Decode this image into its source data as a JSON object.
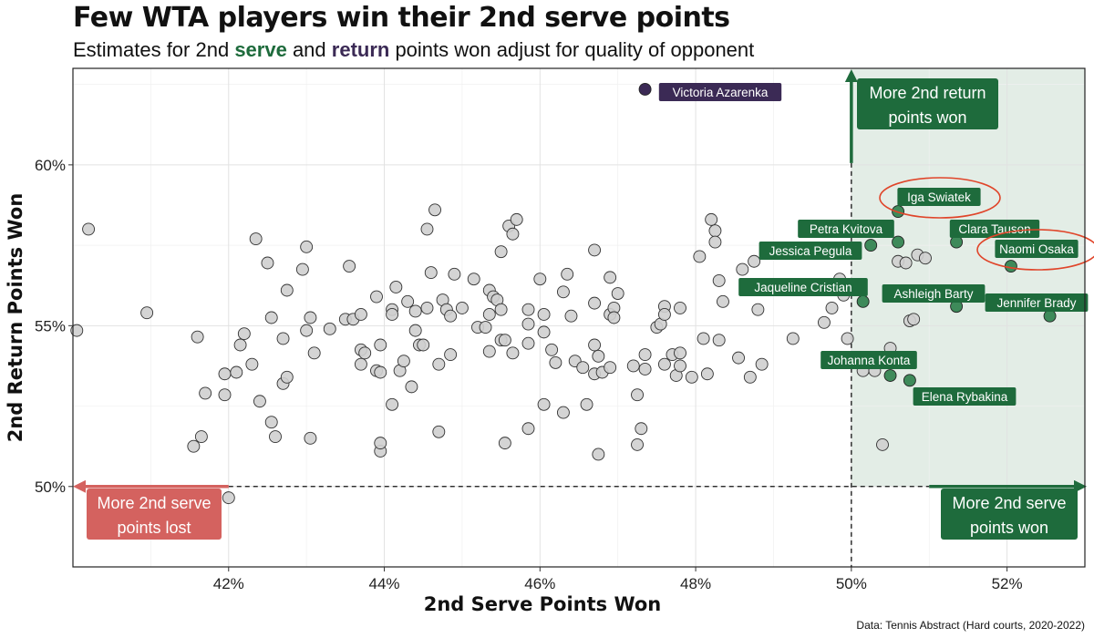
{
  "title": "Few WTA players win their 2nd serve points",
  "subtitle": {
    "pre": "Estimates for 2nd ",
    "serve": "serve",
    "mid": " and ",
    "return": "return",
    "post": " points won adjust for quality of opponent"
  },
  "caption": "Data: Tennis Abstract (Hard courts, 2020-2022)",
  "colors": {
    "point_fill": "#cfcfcf",
    "highlight_fill": "#3e8a5a",
    "highlight_label": "#1e6b3c",
    "azarenka": "#3b2a55",
    "lost": "#d4625f",
    "shade": "#e3ede6",
    "circle": "#e0452a"
  },
  "chart_data": {
    "type": "scatter",
    "xlabel": "2nd Serve Points Won",
    "ylabel": "2nd Return Points Won",
    "xlim": [
      40,
      53
    ],
    "ylim": [
      47.5,
      63
    ],
    "xticks": [
      42,
      44,
      46,
      48,
      50,
      52
    ],
    "yticks": [
      50,
      55,
      60
    ],
    "xtick_labels": [
      "42%",
      "44%",
      "46%",
      "48%",
      "50%",
      "52%"
    ],
    "ytick_labels": [
      "50%",
      "55%",
      "60%"
    ],
    "grid": true,
    "reference_lines": {
      "x": 50,
      "y": 50
    },
    "annotations": [
      {
        "text_lines": [
          "More 2nd return",
          "points won"
        ],
        "color": "green"
      },
      {
        "text_lines": [
          "More 2nd serve",
          "points lost"
        ],
        "color": "red"
      },
      {
        "text_lines": [
          "More 2nd serve",
          "points won"
        ],
        "color": "green"
      }
    ],
    "labeled_points": [
      {
        "name": "Victoria Azarenka",
        "x": 47.35,
        "y": 62.35,
        "group": "azarenka"
      },
      {
        "name": "Iga Swiatek",
        "x": 50.6,
        "y": 58.55,
        "group": "top",
        "circled": true
      },
      {
        "name": "Petra Kvitova",
        "x": 50.6,
        "y": 57.6,
        "group": "top"
      },
      {
        "name": "Jessica Pegula",
        "x": 50.25,
        "y": 57.5,
        "group": "top"
      },
      {
        "name": "Clara Tauson",
        "x": 51.35,
        "y": 57.6,
        "group": "top"
      },
      {
        "name": "Naomi Osaka",
        "x": 52.05,
        "y": 56.85,
        "group": "top",
        "circled": true
      },
      {
        "name": "Jaqueline Cristian",
        "x": 50.15,
        "y": 55.75,
        "group": "top"
      },
      {
        "name": "Ashleigh Barty",
        "x": 51.35,
        "y": 55.6,
        "group": "top"
      },
      {
        "name": "Jennifer Brady",
        "x": 52.55,
        "y": 55.3,
        "group": "top"
      },
      {
        "name": "Johanna Konta",
        "x": 50.5,
        "y": 53.45,
        "group": "top"
      },
      {
        "name": "Elena Rybakina",
        "x": 50.75,
        "y": 53.3,
        "group": "top"
      }
    ],
    "points": [
      [
        40.05,
        54.85
      ],
      [
        40.2,
        58.0
      ],
      [
        40.95,
        55.4
      ],
      [
        41.55,
        51.25
      ],
      [
        41.6,
        54.65
      ],
      [
        41.65,
        51.55
      ],
      [
        41.7,
        52.9
      ],
      [
        41.95,
        53.5
      ],
      [
        41.95,
        52.85
      ],
      [
        42.1,
        53.55
      ],
      [
        42.15,
        54.4
      ],
      [
        42.2,
        54.75
      ],
      [
        42.3,
        53.8
      ],
      [
        42.35,
        57.7
      ],
      [
        42.4,
        52.65
      ],
      [
        42.5,
        56.95
      ],
      [
        42.55,
        55.25
      ],
      [
        42.55,
        52.0
      ],
      [
        42.6,
        51.55
      ],
      [
        42.7,
        53.2
      ],
      [
        42.7,
        54.6
      ],
      [
        42.75,
        53.4
      ],
      [
        42.75,
        56.1
      ],
      [
        42.95,
        56.75
      ],
      [
        43.0,
        54.85
      ],
      [
        43.0,
        57.45
      ],
      [
        43.05,
        55.25
      ],
      [
        43.05,
        51.5
      ],
      [
        43.1,
        54.15
      ],
      [
        43.3,
        54.9
      ],
      [
        43.5,
        55.2
      ],
      [
        43.55,
        56.85
      ],
      [
        43.6,
        55.2
      ],
      [
        43.7,
        55.35
      ],
      [
        43.7,
        53.8
      ],
      [
        43.7,
        54.25
      ],
      [
        43.75,
        54.15
      ],
      [
        43.9,
        55.9
      ],
      [
        43.9,
        53.6
      ],
      [
        43.95,
        54.4
      ],
      [
        43.95,
        53.55
      ],
      [
        43.95,
        51.1
      ],
      [
        43.95,
        51.35
      ],
      [
        44.1,
        55.5
      ],
      [
        44.1,
        55.35
      ],
      [
        44.1,
        52.55
      ],
      [
        44.15,
        56.2
      ],
      [
        44.2,
        53.6
      ],
      [
        44.25,
        53.9
      ],
      [
        44.3,
        55.75
      ],
      [
        44.35,
        53.1
      ],
      [
        44.4,
        54.85
      ],
      [
        44.4,
        55.45
      ],
      [
        44.45,
        54.4
      ],
      [
        44.5,
        54.4
      ],
      [
        44.55,
        55.55
      ],
      [
        44.55,
        58.0
      ],
      [
        44.6,
        56.65
      ],
      [
        44.65,
        58.6
      ],
      [
        44.7,
        51.7
      ],
      [
        44.7,
        53.8
      ],
      [
        44.75,
        55.8
      ],
      [
        44.8,
        55.5
      ],
      [
        44.85,
        55.3
      ],
      [
        44.85,
        54.1
      ],
      [
        44.9,
        56.6
      ],
      [
        45.0,
        55.55
      ],
      [
        45.15,
        56.45
      ],
      [
        45.2,
        54.95
      ],
      [
        45.3,
        54.95
      ],
      [
        45.35,
        56.1
      ],
      [
        45.35,
        55.35
      ],
      [
        45.35,
        54.2
      ],
      [
        45.4,
        55.9
      ],
      [
        45.45,
        55.8
      ],
      [
        45.5,
        55.5
      ],
      [
        45.5,
        54.55
      ],
      [
        45.5,
        57.3
      ],
      [
        45.55,
        54.55
      ],
      [
        45.55,
        51.35
      ],
      [
        45.6,
        58.1
      ],
      [
        45.65,
        57.85
      ],
      [
        45.65,
        54.15
      ],
      [
        45.7,
        58.3
      ],
      [
        45.85,
        55.05
      ],
      [
        45.85,
        54.45
      ],
      [
        45.85,
        51.8
      ],
      [
        45.85,
        55.5
      ],
      [
        46.0,
        56.45
      ],
      [
        46.05,
        54.8
      ],
      [
        46.05,
        55.35
      ],
      [
        46.05,
        52.55
      ],
      [
        46.15,
        54.25
      ],
      [
        46.2,
        53.85
      ],
      [
        46.3,
        56.05
      ],
      [
        46.3,
        52.3
      ],
      [
        46.35,
        56.6
      ],
      [
        46.4,
        55.3
      ],
      [
        46.45,
        53.9
      ],
      [
        46.55,
        53.7
      ],
      [
        46.6,
        52.55
      ],
      [
        46.7,
        55.7
      ],
      [
        46.7,
        54.4
      ],
      [
        46.7,
        53.5
      ],
      [
        46.7,
        57.35
      ],
      [
        46.75,
        54.05
      ],
      [
        46.75,
        51.0
      ],
      [
        46.8,
        53.55
      ],
      [
        46.9,
        55.35
      ],
      [
        46.9,
        56.5
      ],
      [
        46.9,
        53.7
      ],
      [
        46.95,
        55.55
      ],
      [
        46.95,
        55.25
      ],
      [
        47.0,
        56.0
      ],
      [
        47.2,
        53.75
      ],
      [
        47.25,
        52.85
      ],
      [
        47.25,
        51.3
      ],
      [
        47.3,
        51.8
      ],
      [
        47.35,
        54.1
      ],
      [
        47.35,
        53.65
      ],
      [
        47.5,
        54.95
      ],
      [
        47.55,
        55.05
      ],
      [
        47.6,
        55.6
      ],
      [
        47.6,
        55.35
      ],
      [
        47.6,
        53.8
      ],
      [
        47.7,
        54.1
      ],
      [
        47.75,
        53.45
      ],
      [
        47.8,
        54.15
      ],
      [
        47.8,
        53.75
      ],
      [
        47.8,
        55.55
      ],
      [
        47.95,
        53.4
      ],
      [
        48.05,
        57.15
      ],
      [
        48.1,
        54.6
      ],
      [
        48.15,
        53.5
      ],
      [
        48.2,
        58.3
      ],
      [
        48.25,
        57.95
      ],
      [
        48.25,
        57.6
      ],
      [
        48.3,
        56.4
      ],
      [
        48.3,
        54.55
      ],
      [
        48.35,
        55.75
      ],
      [
        48.55,
        54.0
      ],
      [
        48.6,
        56.75
      ],
      [
        48.7,
        53.4
      ],
      [
        48.75,
        57.0
      ],
      [
        48.75,
        56.25
      ],
      [
        48.8,
        55.5
      ],
      [
        48.85,
        53.8
      ],
      [
        49.0,
        57.3
      ],
      [
        49.25,
        54.6
      ],
      [
        49.55,
        56.2
      ],
      [
        49.65,
        55.1
      ],
      [
        49.7,
        56.15
      ],
      [
        49.75,
        55.55
      ],
      [
        49.85,
        56.45
      ],
      [
        49.9,
        55.95
      ],
      [
        49.95,
        54.6
      ],
      [
        50.15,
        53.6
      ],
      [
        50.3,
        53.6
      ],
      [
        50.4,
        51.3
      ],
      [
        50.5,
        54.3
      ],
      [
        50.6,
        57.0
      ],
      [
        50.7,
        56.95
      ],
      [
        50.75,
        55.15
      ],
      [
        50.8,
        55.2
      ],
      [
        50.85,
        57.2
      ],
      [
        50.95,
        57.1
      ],
      [
        42.0,
        49.65
      ]
    ]
  }
}
